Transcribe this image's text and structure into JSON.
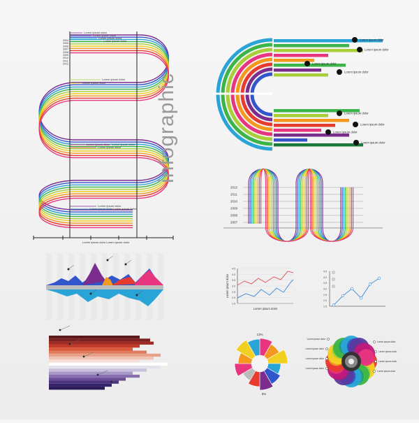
{
  "title": "infographic",
  "lorem": "Lorem ipsum dolor",
  "wave_panel": {
    "years": [
      "2004",
      "2005",
      "2006",
      "2007",
      "2008",
      "2009",
      "2010",
      "2011",
      "2012"
    ],
    "callouts": [
      "Lorem ipsum dolor",
      "Lorem ipsum dolor",
      "Lorem ipsum dolor",
      "Lorem ipsum dolor",
      "Lorem ipsum dolor",
      "Lorem ipsum dolor",
      "Lorem ipsum dolor",
      "Lorem ipsum dolor",
      "Lorem ipsum dolor",
      "Lorem ipsum dolor",
      "Lorem ipsum dolor",
      "Lorem ipsum dolor"
    ],
    "bottom_label": "Lorem ipsum dolor  Lorem ipsum dolor",
    "colors": [
      "#7b2d8e",
      "#3355cc",
      "#2aa4d6",
      "#3bb44a",
      "#a8cf38",
      "#f2d022",
      "#f39a1e",
      "#e63b2e",
      "#e8357f"
    ]
  },
  "arc_panel": {
    "labels": [
      "Lorem ipsum dolor",
      "Lorem ipsum dolor",
      "Lorem ipsum dolor",
      "Lorem ipsum dolor",
      "Lorem ipsum dolor",
      "Lorem ipsum dolor",
      "Lorem ipsum dolor",
      "Lorem ipsum dolor"
    ]
  },
  "mini_wave": {
    "years": [
      "2012",
      "2011",
      "2010",
      "2009",
      "2008",
      "2007"
    ]
  },
  "line_chart": {
    "ylabel": "Lorem ipsum dolor",
    "xlabel": "Lorem ipsum dolor",
    "y_ticks": [
      "4.5",
      "4.0",
      "3.5",
      "3.0",
      "2.5",
      "2.0",
      "1.5"
    ]
  },
  "scatter_chart": {
    "y_ticks": [
      "4.5",
      "4.0",
      "3.5",
      "3.0",
      "2.5",
      "2.0",
      "1.5"
    ],
    "points": [
      [
        0,
        1.6
      ],
      [
        1,
        2.4
      ],
      [
        2,
        3.0
      ],
      [
        3,
        2.2
      ],
      [
        4,
        3.4
      ],
      [
        5,
        3.9
      ]
    ]
  },
  "donut": {
    "top_label": "13%",
    "bottom_label": "8%",
    "colors": [
      "#e8357f",
      "#f39a1e",
      "#f2d022",
      "#2aa4d6",
      "#3355cc",
      "#7b2d8e",
      "#e63b2e",
      "#bbbbbb"
    ]
  },
  "colorwheel": {
    "labels": [
      "Lorem ipsum dolor",
      "Lorem ipsum dolor",
      "Lorem ipsum dolor",
      "Lorem ipsum dolor",
      "Lorem ipsum dolor",
      "Lorem ipsum dolor",
      "Lorem ipsum dolor",
      "Lorem ipsum dolor"
    ]
  }
}
